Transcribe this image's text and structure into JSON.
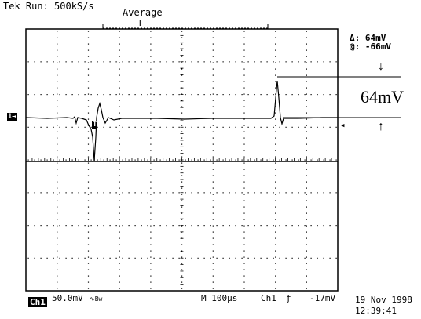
{
  "header": {
    "status": "Tek Run: 500kS/s",
    "acq_mode": "Average",
    "trigger_pos_marker": "T"
  },
  "measurement": {
    "delta": "Δ: 64mV",
    "at": "@: -66mV"
  },
  "annotation": {
    "amplitude": "64mV",
    "arrow_down": "↓",
    "arrow_up": "↑"
  },
  "markers": {
    "channel1": "1→",
    "trigger_level": "◂",
    "trigger_point": "T"
  },
  "footer": {
    "channel": "Ch1",
    "vdiv": "50.0mV",
    "coupling": "∿Bw",
    "timebase": "M 100µs",
    "trigger_source": "Ch1",
    "trigger_slope": "ƒ",
    "trigger_level": "-17mV",
    "date": "19 Nov 1998",
    "time": "12:39:41"
  },
  "colors": {
    "background": "#ffffff",
    "trace": "#000000",
    "grid": "#000000"
  }
}
